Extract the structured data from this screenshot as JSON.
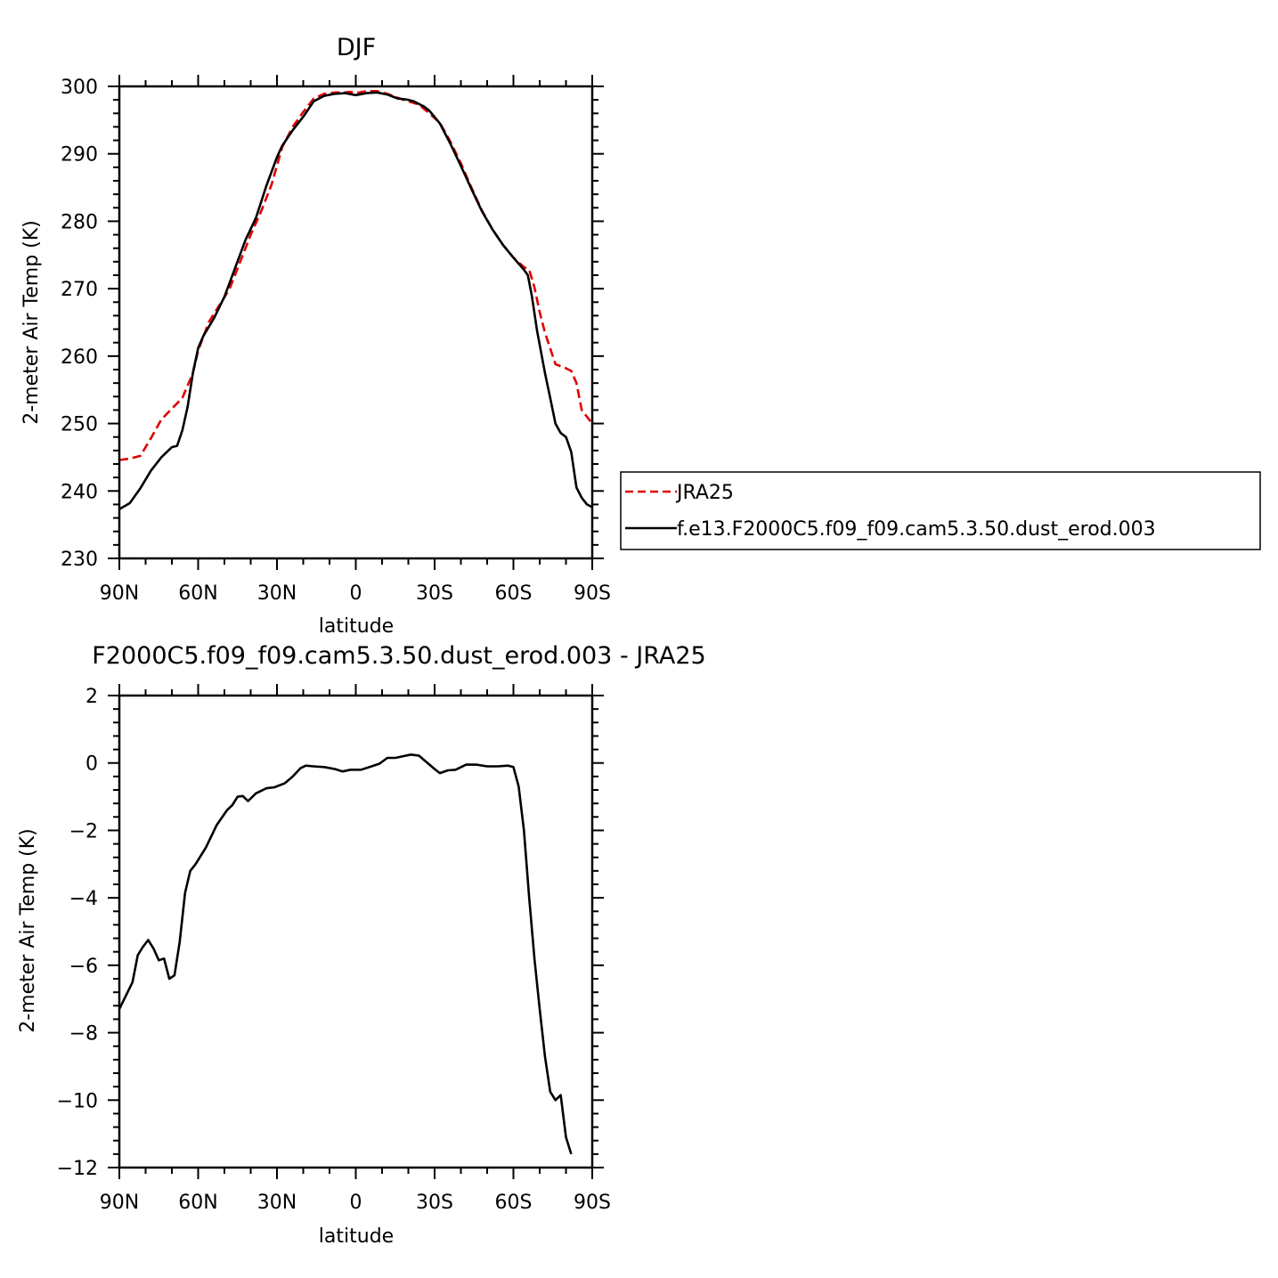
{
  "chart_data": [
    {
      "type": "line",
      "title": "DJF",
      "xlabel": "latitude",
      "ylabel": "2-meter Air Temp (K)",
      "xlim": [
        90,
        -90
      ],
      "ylim": [
        230,
        300
      ],
      "x_ticks": [
        {
          "value": 90,
          "label": "90N"
        },
        {
          "value": 60,
          "label": "60N"
        },
        {
          "value": 30,
          "label": "30N"
        },
        {
          "value": 0,
          "label": "0"
        },
        {
          "value": -30,
          "label": "30S"
        },
        {
          "value": -60,
          "label": "60S"
        },
        {
          "value": -90,
          "label": "90S"
        }
      ],
      "y_ticks": [
        {
          "value": 300,
          "label": "300"
        },
        {
          "value": 290,
          "label": "290"
        },
        {
          "value": 280,
          "label": "280"
        },
        {
          "value": 270,
          "label": "270"
        },
        {
          "value": 260,
          "label": "260"
        },
        {
          "value": 250,
          "label": "250"
        },
        {
          "value": 240,
          "label": "240"
        },
        {
          "value": 230,
          "label": "230"
        }
      ],
      "legend_position": "right",
      "series": [
        {
          "name": "JRA25",
          "color": "#e00000",
          "dash": "dashed",
          "points": [
            [
              90,
              244.6
            ],
            [
              86,
              244.8
            ],
            [
              82,
              245.2
            ],
            [
              78,
              247.8
            ],
            [
              74,
              250.6
            ],
            [
              70,
              252.2
            ],
            [
              66,
              253.8
            ],
            [
              62,
              257.5
            ],
            [
              60,
              260.8
            ],
            [
              56,
              265.0
            ],
            [
              52,
              267.5
            ],
            [
              48,
              270.0
            ],
            [
              44,
              274.0
            ],
            [
              40,
              278.0
            ],
            [
              36,
              281.5
            ],
            [
              32,
              285.5
            ],
            [
              28,
              291.0
            ],
            [
              24,
              294.0
            ],
            [
              20,
              296.2
            ],
            [
              16,
              298.2
            ],
            [
              12,
              298.9
            ],
            [
              8,
              299.1
            ],
            [
              4,
              299.1
            ],
            [
              2,
              299.2
            ],
            [
              0,
              299.0
            ],
            [
              -4,
              299.3
            ],
            [
              -8,
              299.3
            ],
            [
              -12,
              298.9
            ],
            [
              -16,
              298.3
            ],
            [
              -20,
              297.8
            ],
            [
              -24,
              297.3
            ],
            [
              -28,
              296.0
            ],
            [
              -32,
              294.6
            ],
            [
              -36,
              291.8
            ],
            [
              -40,
              288.6
            ],
            [
              -44,
              285.0
            ],
            [
              -48,
              281.6
            ],
            [
              -52,
              278.8
            ],
            [
              -56,
              276.5
            ],
            [
              -60,
              274.6
            ],
            [
              -64,
              273.2
            ],
            [
              -66,
              272.8
            ],
            [
              -68,
              270.2
            ],
            [
              -70,
              266.5
            ],
            [
              -72,
              263.5
            ],
            [
              -76,
              258.8
            ],
            [
              -80,
              258.2
            ],
            [
              -82,
              257.8
            ],
            [
              -84,
              256.0
            ],
            [
              -86,
              252.0
            ],
            [
              -90,
              250.0
            ]
          ]
        },
        {
          "name": "f.e13.F2000C5.f09_f09.cam5.3.50.dust_erod.003",
          "color": "#000000",
          "dash": "solid",
          "points": [
            [
              90,
              237.3
            ],
            [
              86,
              238.2
            ],
            [
              82,
              240.4
            ],
            [
              78,
              243.0
            ],
            [
              74,
              245.0
            ],
            [
              70,
              246.5
            ],
            [
              68,
              246.7
            ],
            [
              66,
              249.0
            ],
            [
              64,
              252.5
            ],
            [
              62,
              257.5
            ],
            [
              60,
              261.2
            ],
            [
              58,
              263.0
            ],
            [
              54,
              265.6
            ],
            [
              50,
              268.8
            ],
            [
              46,
              273.0
            ],
            [
              42,
              277.2
            ],
            [
              38,
              280.5
            ],
            [
              34,
              285.3
            ],
            [
              30,
              289.5
            ],
            [
              28,
              291.2
            ],
            [
              24,
              293.5
            ],
            [
              20,
              295.5
            ],
            [
              16,
              297.8
            ],
            [
              12,
              298.6
            ],
            [
              8,
              298.9
            ],
            [
              4,
              299.0
            ],
            [
              0,
              298.7
            ],
            [
              -4,
              299.0
            ],
            [
              -8,
              299.1
            ],
            [
              -12,
              298.8
            ],
            [
              -16,
              298.2
            ],
            [
              -20,
              298.0
            ],
            [
              -22,
              297.8
            ],
            [
              -26,
              297.0
            ],
            [
              -28,
              296.4
            ],
            [
              -32,
              294.5
            ],
            [
              -36,
              291.5
            ],
            [
              -40,
              288.2
            ],
            [
              -44,
              284.8
            ],
            [
              -48,
              281.5
            ],
            [
              -52,
              278.8
            ],
            [
              -56,
              276.5
            ],
            [
              -60,
              274.6
            ],
            [
              -64,
              272.8
            ],
            [
              -65.5,
              272.0
            ],
            [
              -67,
              269.0
            ],
            [
              -69,
              263.8
            ],
            [
              -72,
              257.5
            ],
            [
              -74,
              253.8
            ],
            [
              -76,
              250.0
            ],
            [
              -78,
              248.6
            ],
            [
              -80,
              248.0
            ],
            [
              -82,
              245.8
            ],
            [
              -84,
              240.5
            ],
            [
              -86,
              239.0
            ],
            [
              -88,
              238.0
            ],
            [
              -90,
              237.6
            ]
          ]
        }
      ]
    },
    {
      "type": "line",
      "title": "F2000C5.f09_f09.cam5.3.50.dust_erod.003 - JRA25",
      "xlabel": "latitude",
      "ylabel": "2-meter Air Temp (K)",
      "xlim": [
        90,
        -90
      ],
      "ylim": [
        -12,
        2
      ],
      "x_ticks": [
        {
          "value": 90,
          "label": "90N"
        },
        {
          "value": 60,
          "label": "60N"
        },
        {
          "value": 30,
          "label": "30N"
        },
        {
          "value": 0,
          "label": "0"
        },
        {
          "value": -30,
          "label": "30S"
        },
        {
          "value": -60,
          "label": "60S"
        },
        {
          "value": -90,
          "label": "90S"
        }
      ],
      "y_ticks": [
        {
          "value": 2,
          "label": "2"
        },
        {
          "value": 0,
          "label": "0"
        },
        {
          "value": -2,
          "label": "−2"
        },
        {
          "value": -4,
          "label": "−4"
        },
        {
          "value": -6,
          "label": "−6"
        },
        {
          "value": -8,
          "label": "−8"
        },
        {
          "value": -10,
          "label": "−10"
        },
        {
          "value": -12,
          "label": "−12"
        }
      ],
      "series": [
        {
          "color": "#000000",
          "dash": "solid",
          "points": [
            [
              90,
              -7.3
            ],
            [
              85,
              -6.5
            ],
            [
              83,
              -5.7
            ],
            [
              81,
              -5.45
            ],
            [
              79,
              -5.25
            ],
            [
              77,
              -5.5
            ],
            [
              75,
              -5.85
            ],
            [
              73,
              -5.8
            ],
            [
              71,
              -6.4
            ],
            [
              69,
              -6.3
            ],
            [
              67,
              -5.3
            ],
            [
              65,
              -3.85
            ],
            [
              63,
              -3.2
            ],
            [
              61,
              -3.0
            ],
            [
              57,
              -2.5
            ],
            [
              53,
              -1.85
            ],
            [
              49,
              -1.4
            ],
            [
              47,
              -1.25
            ],
            [
              45,
              -1.0
            ],
            [
              43,
              -0.98
            ],
            [
              41,
              -1.13
            ],
            [
              38,
              -0.9
            ],
            [
              34,
              -0.75
            ],
            [
              31,
              -0.72
            ],
            [
              27,
              -0.6
            ],
            [
              24,
              -0.4
            ],
            [
              21,
              -0.15
            ],
            [
              19,
              -0.08
            ],
            [
              16,
              -0.1
            ],
            [
              12,
              -0.12
            ],
            [
              8,
              -0.18
            ],
            [
              5,
              -0.25
            ],
            [
              2,
              -0.2
            ],
            [
              -2,
              -0.2
            ],
            [
              -6,
              -0.1
            ],
            [
              -9,
              -0.02
            ],
            [
              -12,
              0.15
            ],
            [
              -15,
              0.15
            ],
            [
              -18,
              0.2
            ],
            [
              -21,
              0.25
            ],
            [
              -24,
              0.22
            ],
            [
              -27,
              0.02
            ],
            [
              -30,
              -0.18
            ],
            [
              -32,
              -0.3
            ],
            [
              -35,
              -0.22
            ],
            [
              -38,
              -0.2
            ],
            [
              -42,
              -0.05
            ],
            [
              -46,
              -0.05
            ],
            [
              -50,
              -0.1
            ],
            [
              -54,
              -0.1
            ],
            [
              -58,
              -0.08
            ],
            [
              -60,
              -0.12
            ],
            [
              -62,
              -0.7
            ],
            [
              -64,
              -2.0
            ],
            [
              -66,
              -4.0
            ],
            [
              -68,
              -5.8
            ],
            [
              -70,
              -7.3
            ],
            [
              -72,
              -8.7
            ],
            [
              -74,
              -9.75
            ],
            [
              -76,
              -10.0
            ],
            [
              -78,
              -9.85
            ],
            [
              -80,
              -11.1
            ],
            [
              -82,
              -11.6
            ]
          ]
        }
      ]
    }
  ]
}
